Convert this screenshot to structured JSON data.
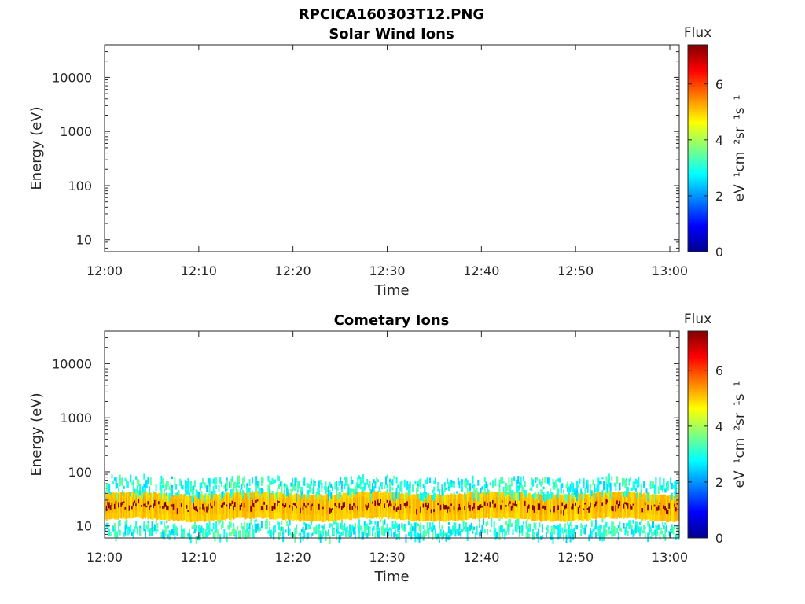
{
  "figure_title": "RPCICA160303T12.PNG",
  "chart_data": [
    {
      "type": "heatmap",
      "title": "Solar Wind Ions",
      "xlabel": "Time",
      "ylabel": "Energy (eV)",
      "x_ticks": [
        "12:00",
        "12:10",
        "12:20",
        "12:30",
        "12:40",
        "12:50",
        "13:00"
      ],
      "x_range": [
        "12:00",
        "13:01"
      ],
      "y_scale": "log",
      "y_ticks": [
        10,
        100,
        1000,
        10000
      ],
      "y_tick_labels": [
        "10",
        "100",
        "1000",
        "10000"
      ],
      "y_range": [
        6,
        40000
      ],
      "colorbar": {
        "title": "Flux",
        "label": "eV⁻¹cm⁻²sr⁻¹s⁻¹",
        "ticks": [
          0,
          2,
          4,
          6
        ],
        "range": [
          0,
          7.4
        ],
        "colormap": "jet"
      },
      "data_bands": []
    },
    {
      "type": "heatmap",
      "title": "Cometary Ions",
      "xlabel": "Time",
      "ylabel": "Energy (eV)",
      "x_ticks": [
        "12:00",
        "12:10",
        "12:20",
        "12:30",
        "12:40",
        "12:50",
        "13:00"
      ],
      "x_range": [
        "12:00",
        "13:01"
      ],
      "y_scale": "log",
      "y_ticks": [
        10,
        100,
        1000,
        10000
      ],
      "y_tick_labels": [
        "10",
        "100",
        "1000",
        "10000"
      ],
      "y_range": [
        6,
        40000
      ],
      "colorbar": {
        "title": "Flux",
        "label": "eV⁻¹cm⁻²sr⁻¹s⁻¹",
        "ticks": [
          0,
          2,
          4,
          6
        ],
        "range": [
          0,
          7.4
        ],
        "colormap": "jet"
      },
      "data_bands": [
        {
          "energy_range_eV": [
            17,
            32
          ],
          "flux": 7.0
        },
        {
          "energy_range_eV": [
            13,
            40
          ],
          "flux": 5.0
        },
        {
          "energy_range_eV": [
            40,
            85
          ],
          "flux": 3.0,
          "sparse": true
        },
        {
          "energy_range_eV": [
            7,
            13
          ],
          "flux": 3.0,
          "sparse": true
        }
      ]
    }
  ]
}
